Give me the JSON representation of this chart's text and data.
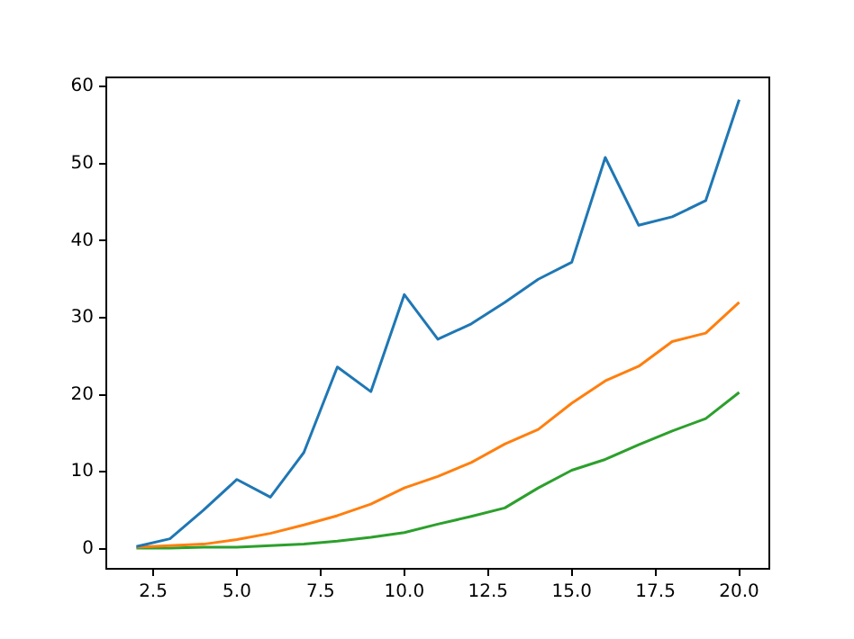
{
  "chart_data": {
    "type": "line",
    "x": [
      2,
      3,
      4,
      5,
      6,
      7,
      8,
      9,
      10,
      11,
      12,
      13,
      14,
      15,
      16,
      17,
      18,
      19,
      20
    ],
    "series": [
      {
        "color": "#1f77b4",
        "values": [
          0.3,
          1.3,
          5,
          9,
          6.7,
          12.5,
          23.6,
          20.4,
          33,
          27.2,
          29.2,
          32,
          35,
          37.2,
          50.8,
          42,
          43.1,
          45.2,
          58.3
        ]
      },
      {
        "color": "#ff7f0e",
        "values": [
          0.2,
          0.4,
          0.6,
          1.2,
          2,
          3.1,
          4.3,
          5.8,
          7.9,
          9.4,
          11.2,
          13.6,
          15.5,
          18.9,
          21.8,
          23.7,
          26.9,
          28,
          32
        ]
      },
      {
        "color": "#2ca02c",
        "values": [
          0.1,
          0.1,
          0.2,
          0.2,
          0.4,
          0.6,
          1,
          1.5,
          2.1,
          3.2,
          4.2,
          5.3,
          7.9,
          10.2,
          11.6,
          13.5,
          15.3,
          16.9,
          20.3
        ]
      }
    ],
    "xlim": [
      1.1,
      20.9
    ],
    "ylim": [
      -2.6,
      61.2
    ],
    "xticks": [
      {
        "value": 2.5,
        "label": "2.5"
      },
      {
        "value": 5,
        "label": "5.0"
      },
      {
        "value": 7.5,
        "label": "7.5"
      },
      {
        "value": 10,
        "label": "10.0"
      },
      {
        "value": 12.5,
        "label": "12.5"
      },
      {
        "value": 15,
        "label": "15.0"
      },
      {
        "value": 17.5,
        "label": "17.5"
      },
      {
        "value": 20,
        "label": "20.0"
      }
    ],
    "yticks": [
      0,
      10,
      20,
      30,
      40,
      50,
      60
    ],
    "grid": false,
    "legend": false,
    "marker": "none",
    "line_style": "solid"
  }
}
